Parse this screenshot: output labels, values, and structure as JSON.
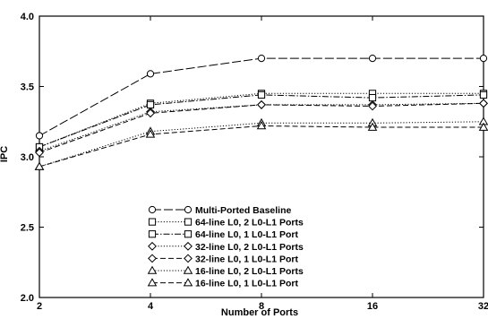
{
  "chart_data": {
    "type": "line",
    "xlabel": "Number of Ports",
    "ylabel": "IPC",
    "x": [
      2,
      4,
      8,
      16,
      32
    ],
    "x_tick_labels": [
      "2",
      "4",
      "8",
      "16",
      "32"
    ],
    "x_scale": "log2",
    "ylim": [
      2.0,
      4.0
    ],
    "y_ticks": [
      2.0,
      2.5,
      3.0,
      3.5,
      4.0
    ],
    "y_tick_labels": [
      "2.0",
      "2.5",
      "3.0",
      "3.5",
      "4.0"
    ],
    "grid": false,
    "legend_position": "bottom-center",
    "series": [
      {
        "name": "Multi-Ported Baseline",
        "marker": "circle",
        "dash": "long-dash",
        "values": [
          3.15,
          3.59,
          3.7,
          3.7,
          3.7
        ]
      },
      {
        "name": "64-line L0, 2 L0-L1 Ports",
        "marker": "square",
        "dash": "dotted",
        "values": [
          3.07,
          3.38,
          3.45,
          3.45,
          3.45
        ]
      },
      {
        "name": "64-line L0, 1 L0-L1 Port",
        "marker": "square",
        "dash": "dash-dot",
        "values": [
          3.07,
          3.37,
          3.44,
          3.42,
          3.44
        ]
      },
      {
        "name": "32-line L0, 2 L0-L1 Ports",
        "marker": "diamond",
        "dash": "dotted",
        "values": [
          3.04,
          3.32,
          3.37,
          3.37,
          3.38
        ]
      },
      {
        "name": "32-line L0, 1 L0-L1 Port",
        "marker": "diamond",
        "dash": "dash",
        "values": [
          3.03,
          3.31,
          3.37,
          3.36,
          3.38
        ]
      },
      {
        "name": "16-line L0, 2 L0-L1 Ports",
        "marker": "triangle",
        "dash": "dotted",
        "values": [
          2.93,
          3.18,
          3.24,
          3.24,
          3.25
        ]
      },
      {
        "name": "16-line L0, 1 L0-L1 Port",
        "marker": "triangle",
        "dash": "dash",
        "values": [
          2.93,
          3.16,
          3.22,
          3.21,
          3.21
        ]
      }
    ]
  }
}
